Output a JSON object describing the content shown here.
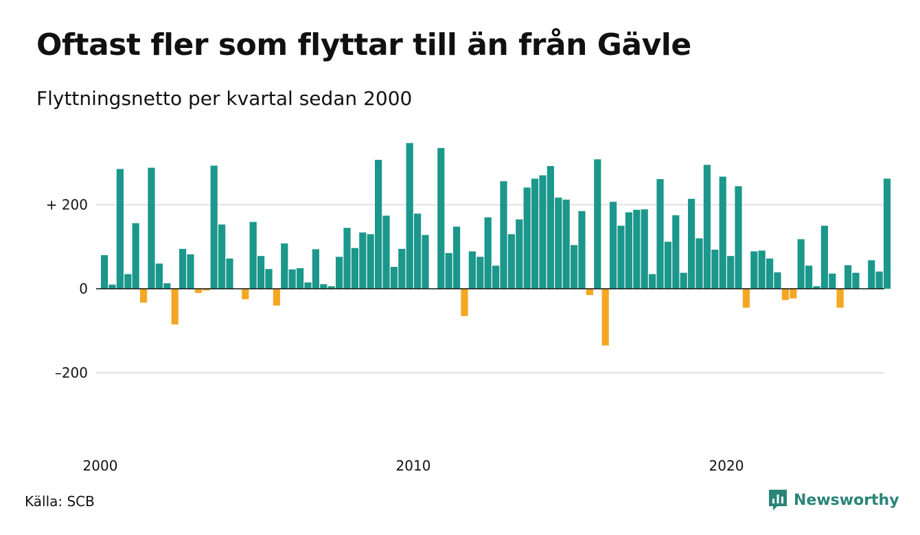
{
  "title": "Oftast fler som flyttar till än från Gävle",
  "subtitle": "Flyttningsnetto per kvartal sedan 2000",
  "source": "Källa: SCB",
  "brand": {
    "name": "Newsworthy",
    "icon": "newsworthy-logo-icon"
  },
  "colors": {
    "positive": "#1b978b",
    "negative": "#f5a623",
    "grid": "#e1e1e1",
    "zero": "#111111"
  },
  "chart_data": {
    "type": "bar",
    "x_start_year": 2000,
    "x_ticks": [
      "2000",
      "2010",
      "2020"
    ],
    "y_ticks": [
      {
        "value": 200,
        "label": "+ 200"
      },
      {
        "value": 0,
        "label": "0"
      },
      {
        "value": -200,
        "label": "–200"
      }
    ],
    "ylim": [
      -340,
      360
    ],
    "grid": true,
    "values": [
      80,
      10,
      285,
      35,
      156,
      -33,
      288,
      60,
      13,
      -85,
      95,
      82,
      -10,
      -4,
      293,
      153,
      72,
      0,
      -25,
      159,
      78,
      47,
      -40,
      108,
      46,
      49,
      15,
      94,
      11,
      6,
      76,
      145,
      97,
      134,
      130,
      307,
      174,
      52,
      95,
      347,
      179,
      128,
      0,
      335,
      85,
      148,
      -65,
      89,
      76,
      170,
      55,
      256,
      130,
      165,
      241,
      262,
      270,
      292,
      217,
      212,
      104,
      185,
      -15,
      308,
      -135,
      207,
      150,
      182,
      188,
      189,
      35,
      261,
      112,
      175,
      38,
      214,
      120,
      295,
      93,
      267,
      78,
      244,
      -45,
      89,
      91,
      72,
      39,
      -27,
      -23,
      118,
      55,
      6,
      150,
      36,
      -45,
      56,
      38,
      0,
      68,
      41,
      262
    ]
  }
}
